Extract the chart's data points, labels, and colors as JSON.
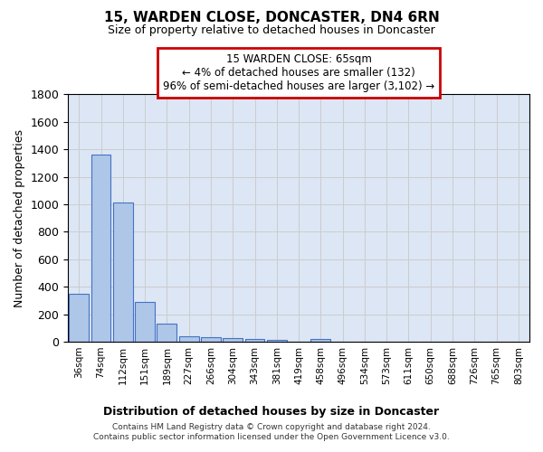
{
  "title": "15, WARDEN CLOSE, DONCASTER, DN4 6RN",
  "subtitle": "Size of property relative to detached houses in Doncaster",
  "xlabel": "Distribution of detached houses by size in Doncaster",
  "ylabel": "Number of detached properties",
  "categories": [
    "36sqm",
    "74sqm",
    "112sqm",
    "151sqm",
    "189sqm",
    "227sqm",
    "266sqm",
    "304sqm",
    "343sqm",
    "381sqm",
    "419sqm",
    "458sqm",
    "496sqm",
    "534sqm",
    "573sqm",
    "611sqm",
    "650sqm",
    "688sqm",
    "726sqm",
    "765sqm",
    "803sqm"
  ],
  "values": [
    350,
    1360,
    1010,
    290,
    130,
    40,
    35,
    25,
    18,
    15,
    0,
    20,
    0,
    0,
    0,
    0,
    0,
    0,
    0,
    0,
    0
  ],
  "bar_color": "#aec6e8",
  "bar_edge_color": "#4472c4",
  "grid_color": "#cccccc",
  "background_color": "#dce6f5",
  "ylim": [
    0,
    1800
  ],
  "annotation_text": "15 WARDEN CLOSE: 65sqm\n← 4% of detached houses are smaller (132)\n96% of semi-detached houses are larger (3,102) →",
  "annotation_box_color": "#cc0000",
  "footer_line1": "Contains HM Land Registry data © Crown copyright and database right 2024.",
  "footer_line2": "Contains public sector information licensed under the Open Government Licence v3.0."
}
